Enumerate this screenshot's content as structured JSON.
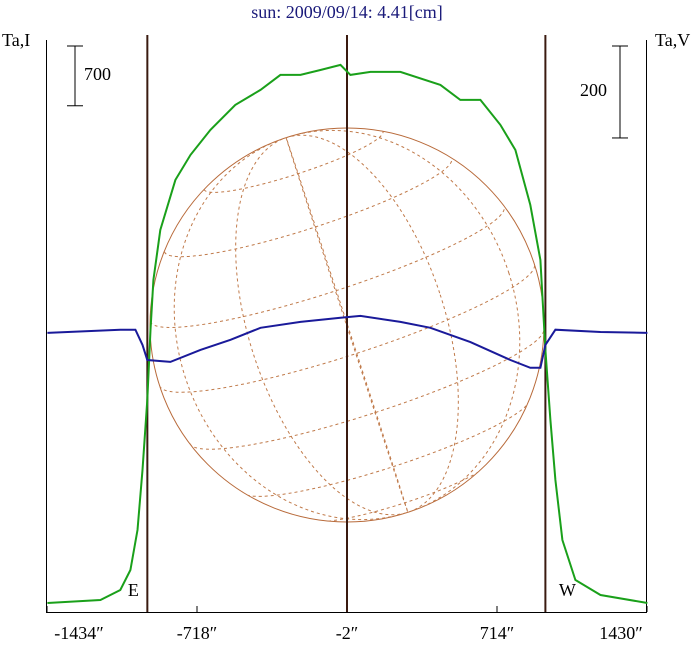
{
  "chart_data": {
    "type": "line",
    "title": "sun: 2009/09/14: 4.41[cm]",
    "y_label": "Ta,I",
    "y2_label": "Ta,V",
    "xlim": [
      -1434,
      1430
    ],
    "xticks": [
      {
        "value": -1434,
        "label": "-1434″"
      },
      {
        "value": -718,
        "label": "-718″"
      },
      {
        "value": -2,
        "label": "-2″"
      },
      {
        "value": 714,
        "label": "714″"
      },
      {
        "value": 1430,
        "label": "1430″"
      }
    ],
    "ylim": [
      0,
      6700
    ],
    "y2lim": [
      -607,
      637
    ],
    "scale_bars": [
      {
        "value": 700,
        "axis": "y"
      },
      {
        "value": 200,
        "axis": "y2"
      }
    ],
    "vertical_lines": [
      {
        "value": -955,
        "label": "E"
      },
      {
        "value": -2
      },
      {
        "value": 945,
        "label": "W"
      }
    ],
    "series": [
      {
        "name": "Ta,I",
        "color": "#1aa01a",
        "axis": "y",
        "x": [
          -1432,
          -1179,
          -1084,
          -1036,
          -1002,
          -978,
          -955,
          -940,
          -926,
          -893,
          -821,
          -749,
          -654,
          -535,
          -415,
          -320,
          -224,
          -129,
          -33,
          14,
          110,
          253,
          444,
          539,
          635,
          730,
          802,
          873,
          921,
          945,
          969,
          993,
          1026,
          1088,
          1208,
          1432
        ],
        "values": [
          105,
          140,
          258,
          492,
          960,
          1663,
          2483,
          3303,
          3889,
          4475,
          5061,
          5354,
          5647,
          5940,
          6115,
          6291,
          6291,
          6349,
          6408,
          6291,
          6326,
          6326,
          6174,
          5998,
          5998,
          5705,
          5412,
          4768,
          4123,
          3069,
          2249,
          1546,
          843,
          375,
          199,
          105
        ]
      },
      {
        "name": "Ta,V",
        "color": "#1a1a9a",
        "axis": "y2",
        "x": [
          -1432,
          -1084,
          -1012,
          -978,
          -955,
          -845,
          -702,
          -558,
          -415,
          -224,
          -33,
          62,
          253,
          396,
          587,
          778,
          873,
          921,
          945,
          993,
          1208,
          1432
        ],
        "values": [
          0,
          7,
          7,
          -26,
          -59,
          -63,
          -37,
          -15,
          11,
          24,
          33,
          37,
          24,
          11,
          -20,
          -59,
          -76,
          -76,
          -26,
          7,
          2,
          0
        ]
      }
    ]
  }
}
